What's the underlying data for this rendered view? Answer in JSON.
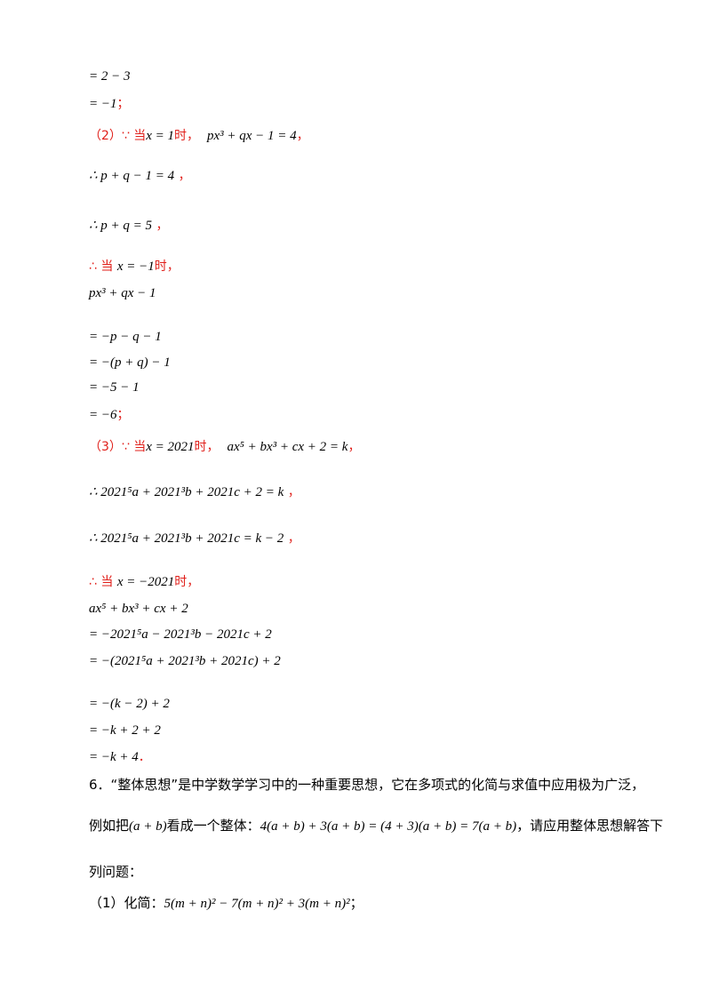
{
  "lines": [
    {
      "id": "l1",
      "math": "= 2 − 3",
      "suffix": ""
    },
    {
      "id": "l2",
      "math": "= −1",
      "suffix": "；"
    },
    {
      "id": "l3",
      "prefix": "（2）∵ 当",
      "math": "x = 1",
      "mid": "时，",
      "math2": "px³ + qx − 1 = 4",
      "suffix": "，"
    },
    {
      "id": "l4",
      "math": "∴ p + q − 1 = 4",
      "suffix": "，"
    },
    {
      "id": "l5",
      "math": "∴ p + q = 5",
      "suffix": "，"
    },
    {
      "id": "l6",
      "prefix": "∴ 当",
      "math": "x = −1",
      "suffix": "时，"
    },
    {
      "id": "l7",
      "math": "px³ + qx − 1",
      "suffix": ""
    },
    {
      "id": "l8",
      "math": "= −p − q − 1",
      "suffix": ""
    },
    {
      "id": "l9",
      "math": "= −(p + q) − 1",
      "suffix": ""
    },
    {
      "id": "l10",
      "math": "= −5 − 1",
      "suffix": ""
    },
    {
      "id": "l11",
      "math": "= −6",
      "suffix": "；"
    },
    {
      "id": "l12",
      "prefix": "（3）∵ 当",
      "math": "x = 2021",
      "mid": "时，",
      "math2": "ax⁵ + bx³ + cx + 2 = k",
      "suffix": "，"
    },
    {
      "id": "l13",
      "math": "∴ 2021⁵a + 2021³b + 2021c + 2 = k",
      "suffix": "，"
    },
    {
      "id": "l14",
      "math": "∴ 2021⁵a + 2021³b + 2021c = k − 2",
      "suffix": "，"
    },
    {
      "id": "l15",
      "prefix": "∴ 当",
      "math": "x = −2021",
      "suffix": "时，"
    },
    {
      "id": "l16",
      "math": "ax⁵ + bx³ + cx + 2",
      "suffix": ""
    },
    {
      "id": "l17",
      "math": "= −2021⁵a − 2021³b − 2021c + 2",
      "suffix": ""
    },
    {
      "id": "l18",
      "math": "= −(2021⁵a + 2021³b + 2021c) + 2",
      "suffix": ""
    },
    {
      "id": "l19",
      "math": "= −(k − 2) + 2",
      "suffix": ""
    },
    {
      "id": "l20",
      "math": "= −k + 2 + 2",
      "suffix": ""
    },
    {
      "id": "l21",
      "math": "= −k + 4",
      "suffix": "．"
    }
  ],
  "question": {
    "line1": "6．“整体思想”是中学数学学习中的一种重要思想，它在多项式的化简与求值中应用极为广泛，",
    "line2_a": "例如把",
    "line2_m1": "(a + b)",
    "line2_b": "看成一个整体：",
    "line2_m2": "4(a + b) + 3(a + b) = (4 + 3)(a + b) = 7(a + b)",
    "line2_c": "，请应用整体思想解答下",
    "line3": "列问题：",
    "line4_a": "（1）化简：",
    "line4_m": "5(m + n)² − 7(m + n)² + 3(m + n)²",
    "line4_b": "；"
  }
}
